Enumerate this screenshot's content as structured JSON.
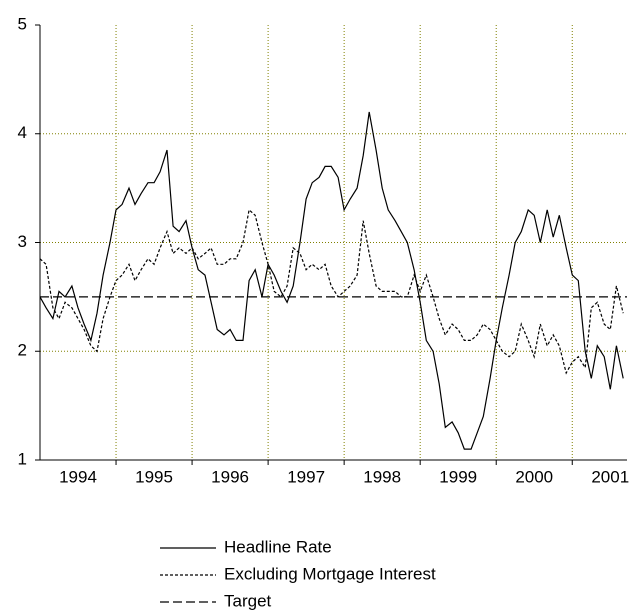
{
  "chart_data": {
    "type": "line",
    "x": [
      1994,
      1994.08,
      1994.17,
      1994.25,
      1994.33,
      1994.42,
      1994.5,
      1994.58,
      1994.67,
      1994.75,
      1994.83,
      1994.92,
      1995,
      1995.08,
      1995.17,
      1995.25,
      1995.33,
      1995.42,
      1995.5,
      1995.58,
      1995.67,
      1995.75,
      1995.83,
      1995.92,
      1996,
      1996.08,
      1996.17,
      1996.25,
      1996.33,
      1996.42,
      1996.5,
      1996.58,
      1996.67,
      1996.75,
      1996.83,
      1996.92,
      1997,
      1997.08,
      1997.17,
      1997.25,
      1997.33,
      1997.42,
      1997.5,
      1997.58,
      1997.67,
      1997.75,
      1997.83,
      1997.92,
      1998,
      1998.08,
      1998.17,
      1998.25,
      1998.33,
      1998.42,
      1998.5,
      1998.58,
      1998.67,
      1998.75,
      1998.83,
      1998.92,
      1999,
      1999.08,
      1999.17,
      1999.25,
      1999.33,
      1999.42,
      1999.5,
      1999.58,
      1999.67,
      1999.75,
      1999.83,
      1999.92,
      2000,
      2000.08,
      2000.17,
      2000.25,
      2000.33,
      2000.42,
      2000.5,
      2000.58,
      2000.67,
      2000.75,
      2000.83,
      2000.92,
      2001,
      2001.08,
      2001.17,
      2001.25,
      2001.33,
      2001.42,
      2001.5,
      2001.58,
      2001.67
    ],
    "series": [
      {
        "name": "Headline Rate",
        "color": "#000000",
        "dash": "none",
        "values": [
          2.5,
          2.4,
          2.3,
          2.55,
          2.5,
          2.6,
          2.4,
          2.25,
          2.1,
          2.35,
          2.7,
          3.0,
          3.3,
          3.35,
          3.5,
          3.35,
          3.45,
          3.55,
          3.55,
          3.65,
          3.85,
          3.15,
          3.1,
          3.2,
          2.95,
          2.75,
          2.7,
          2.45,
          2.2,
          2.15,
          2.2,
          2.1,
          2.1,
          2.65,
          2.75,
          2.5,
          2.8,
          2.7,
          2.55,
          2.45,
          2.6,
          3.0,
          3.4,
          3.55,
          3.6,
          3.7,
          3.7,
          3.6,
          3.3,
          3.4,
          3.5,
          3.8,
          4.2,
          3.85,
          3.5,
          3.3,
          3.2,
          3.1,
          3.0,
          2.75,
          2.45,
          2.1,
          2.0,
          1.7,
          1.3,
          1.35,
          1.25,
          1.1,
          1.1,
          1.25,
          1.4,
          1.75,
          2.1,
          2.4,
          2.7,
          3.0,
          3.1,
          3.3,
          3.25,
          3.0,
          3.3,
          3.05,
          3.25,
          2.95,
          2.7,
          2.65,
          2.0,
          1.75,
          2.05,
          1.95,
          1.65,
          2.05,
          1.75
        ]
      },
      {
        "name": "Excluding Mortgage Interest",
        "color": "#000000",
        "dash": "3,2",
        "values": [
          2.85,
          2.8,
          2.4,
          2.3,
          2.45,
          2.4,
          2.3,
          2.2,
          2.05,
          2.0,
          2.3,
          2.5,
          2.65,
          2.7,
          2.8,
          2.65,
          2.75,
          2.85,
          2.8,
          2.95,
          3.1,
          2.9,
          2.95,
          2.9,
          2.95,
          2.85,
          2.9,
          2.95,
          2.8,
          2.8,
          2.85,
          2.85,
          3.0,
          3.3,
          3.25,
          3.0,
          2.8,
          2.55,
          2.5,
          2.6,
          2.95,
          2.9,
          2.75,
          2.8,
          2.75,
          2.8,
          2.6,
          2.5,
          2.55,
          2.6,
          2.7,
          3.2,
          2.9,
          2.6,
          2.55,
          2.55,
          2.55,
          2.5,
          2.5,
          2.7,
          2.55,
          2.7,
          2.5,
          2.3,
          2.15,
          2.25,
          2.2,
          2.1,
          2.1,
          2.15,
          2.25,
          2.2,
          2.1,
          2.0,
          1.95,
          2.0,
          2.25,
          2.1,
          1.95,
          2.25,
          2.05,
          2.15,
          2.05,
          1.8,
          1.9,
          1.95,
          1.85,
          2.4,
          2.45,
          2.25,
          2.2,
          2.6,
          2.35
        ]
      },
      {
        "name": "Target",
        "color": "#000000",
        "dash": "9,4",
        "x": [
          1994,
          2001.72
        ],
        "values": [
          2.5,
          2.5
        ]
      }
    ],
    "xlim": [
      1994,
      2001.72
    ],
    "xticks": [
      {
        "value": 1994.5,
        "label": "1994"
      },
      {
        "value": 1995.5,
        "label": "1995"
      },
      {
        "value": 1996.5,
        "label": "1996"
      },
      {
        "value": 1997.5,
        "label": "1997"
      },
      {
        "value": 1998.5,
        "label": "1998"
      },
      {
        "value": 1999.5,
        "label": "1999"
      },
      {
        "value": 2000.5,
        "label": "2000"
      },
      {
        "value": 2001.5,
        "label": "2001"
      }
    ],
    "xgrid": [
      1995,
      1996,
      1997,
      1998,
      1999,
      2000,
      2001
    ],
    "ylim": [
      1,
      5
    ],
    "yticks": [
      1,
      2,
      3,
      4,
      5
    ],
    "grid": true,
    "grid_color": "#808000",
    "legend": "bottom"
  }
}
